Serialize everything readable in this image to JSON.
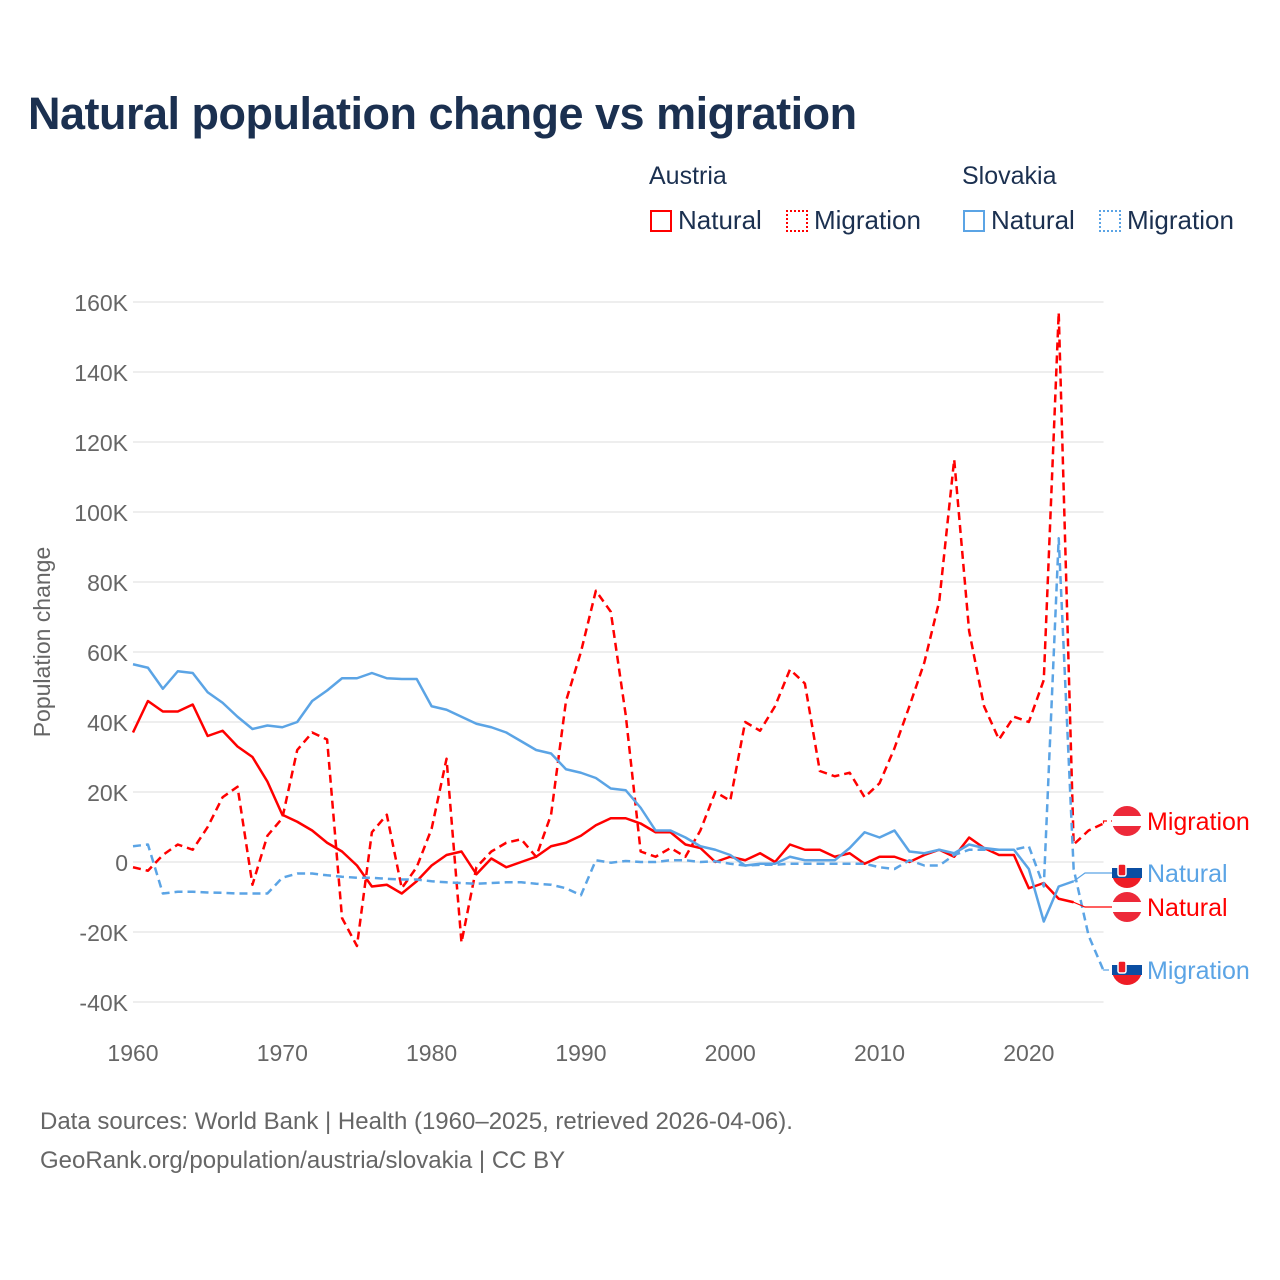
{
  "chart_data": {
    "type": "line",
    "title": "Natural population change vs migration",
    "xlabel": "",
    "ylabel": "Population change",
    "xlim": [
      1960,
      2025
    ],
    "ylim": [
      -40000,
      160000
    ],
    "y_ticks": [
      -40000,
      -20000,
      0,
      20000,
      40000,
      60000,
      80000,
      100000,
      120000,
      140000,
      160000
    ],
    "y_tick_labels": [
      "-40K",
      "-20K",
      "0",
      "20K",
      "40K",
      "60K",
      "80K",
      "100K",
      "120K",
      "140K",
      "160K"
    ],
    "x_ticks": [
      1960,
      1970,
      1980,
      1990,
      2000,
      2010,
      2020
    ],
    "x_tick_labels": [
      "1960",
      "1970",
      "1980",
      "1990",
      "2000",
      "2010",
      "2020"
    ],
    "grid": true,
    "legend_placement": "top-right",
    "legend_groups": [
      "Austria",
      "Slovakia"
    ],
    "series": [
      {
        "name": "Natural",
        "country": "Austria",
        "color": "#ff0000",
        "style": "solid",
        "start_year": 1960,
        "values": [
          37,
          46,
          43,
          43,
          45,
          36,
          37.5,
          33,
          30,
          23,
          13.5,
          11.5,
          9,
          5.5,
          3,
          -1,
          -7,
          -6.5,
          -9,
          -5.5,
          -1,
          2,
          3,
          -3.5,
          1,
          -1.5,
          0,
          1.5,
          4.5,
          5.5,
          7.5,
          10.5,
          12.5,
          12.5,
          11,
          8.5,
          8.5,
          5,
          4,
          0,
          1.5,
          0.5,
          2.5,
          0,
          5,
          3.5,
          3.5,
          1.5,
          2.5,
          -0.5,
          1.5,
          1.5,
          0,
          2,
          3.5,
          1.5,
          7,
          4,
          2,
          2,
          -7.5,
          -6,
          -10.5,
          -11.5
        ]
      },
      {
        "name": "Migration",
        "country": "Austria",
        "color": "#ff0000",
        "style": "dashed",
        "start_year": 1960,
        "values": [
          -1.5,
          -2.5,
          2,
          5,
          3.5,
          10,
          18.5,
          21.5,
          -6.5,
          7.5,
          12.5,
          32,
          37,
          35,
          -16,
          -24,
          8.5,
          13.5,
          -7.5,
          -1.5,
          9.5,
          29.5,
          -23,
          -1.5,
          3,
          5.5,
          6.5,
          1.5,
          13.5,
          46,
          60,
          77.5,
          71.5,
          42,
          3,
          1.5,
          4,
          1.5,
          9,
          20,
          17.5,
          40,
          37.5,
          44.5,
          55,
          51,
          26,
          24.5,
          25.5,
          18.5,
          22.5,
          32.5,
          44.5,
          57,
          74.5,
          115,
          66,
          44.5,
          35,
          41.5,
          40,
          52,
          157,
          5,
          9,
          11
        ]
      },
      {
        "name": "Natural",
        "country": "Slovakia",
        "color": "#5ba4e5",
        "style": "solid",
        "start_year": 1960,
        "values": [
          56.5,
          55.5,
          49.5,
          54.5,
          54,
          48.5,
          45.5,
          41.5,
          38,
          39,
          38.5,
          40,
          46,
          49,
          52.5,
          52.5,
          54,
          52.5,
          52.3,
          52.3,
          44.5,
          43.5,
          41.5,
          39.5,
          38.5,
          37,
          34.5,
          32,
          31,
          26.5,
          25.5,
          24,
          21,
          20.5,
          15.5,
          9,
          9,
          7,
          4.5,
          3.5,
          2,
          -1,
          -0.5,
          -0.5,
          1.5,
          0.5,
          0.5,
          0.5,
          4,
          8.5,
          7,
          9,
          3,
          2.5,
          3.5,
          2.5,
          5,
          4,
          3.5,
          3.5,
          -2,
          -17,
          -7,
          -5.5
        ]
      },
      {
        "name": "Migration",
        "country": "Slovakia",
        "color": "#5ba4e5",
        "style": "dashed",
        "start_year": 1960,
        "values": [
          4.5,
          5,
          -9,
          -8.5,
          -8.5,
          -8.7,
          -8.8,
          -9,
          -9,
          -9,
          -4.5,
          -3.3,
          -3.3,
          -3.8,
          -4.2,
          -4.5,
          -4.5,
          -4.8,
          -5,
          -5,
          -5.5,
          -5.8,
          -6,
          -6.2,
          -6,
          -5.8,
          -5.8,
          -6.2,
          -6.5,
          -7.5,
          -9.5,
          0.5,
          -0.2,
          0.3,
          0,
          0,
          0.5,
          0.5,
          0,
          0.2,
          -0.5,
          -1,
          -0.8,
          -0.8,
          -0.5,
          -0.5,
          -0.5,
          -0.5,
          -0.5,
          -0.5,
          -1.5,
          -2,
          0.5,
          -1,
          -1,
          2,
          3.5,
          3.5,
          3.5,
          3.5,
          4.5,
          -7,
          92.5,
          -2,
          -21,
          -31
        ]
      }
    ],
    "value_unit_multiplier": 1000,
    "end_labels": [
      {
        "text": "Migration",
        "country": "Austria",
        "color": "#ff0000"
      },
      {
        "text": "Natural",
        "country": "Slovakia",
        "color": "#5ba4e5"
      },
      {
        "text": "Natural",
        "country": "Austria",
        "color": "#ff0000"
      },
      {
        "text": "Migration",
        "country": "Slovakia",
        "color": "#5ba4e5"
      }
    ]
  },
  "legend": {
    "austria": "Austria",
    "slovakia": "Slovakia",
    "natural": "Natural",
    "migration": "Migration"
  },
  "footer": {
    "line1": "Data sources: World Bank | Health (1960–2025, retrieved 2026-04-06).",
    "line2": "GeoRank.org/population/austria/slovakia | CC BY"
  },
  "colors": {
    "austria": "#ff0000",
    "slovakia": "#5ba4e5",
    "title": "#1b3050"
  }
}
